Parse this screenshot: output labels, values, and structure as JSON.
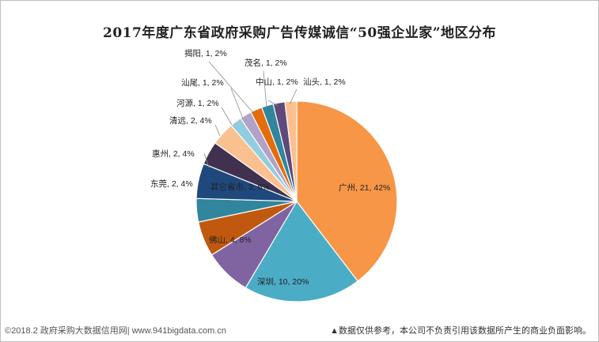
{
  "chart_data": {
    "type": "pie",
    "title": "2017年度广东省政府采购广告传媒诚信“50强企业家”地区分布",
    "slices": [
      {
        "label": "广州, 21, 42%",
        "name": "广州",
        "value": 21,
        "percent": 42,
        "color": "#F79646"
      },
      {
        "label": "深圳, 10, 20%",
        "name": "深圳",
        "value": 10,
        "percent": 20,
        "color": "#4BACC6"
      },
      {
        "label": "佛山, 4, 8%",
        "name": "佛山",
        "value": 4,
        "percent": 8,
        "color": "#8064A2"
      },
      {
        "label": "",
        "name": "",
        "value": 3,
        "percent": 6,
        "color": "#C0590F"
      },
      {
        "label": "东莞, 2, 4%",
        "name": "东莞",
        "value": 2,
        "percent": 4,
        "color": "#31859C"
      },
      {
        "label": "其它省市, 3, 6%",
        "name": "其它省市",
        "value": 3,
        "percent": 6,
        "color": "#1F497D"
      },
      {
        "label": "惠州, 2, 4%",
        "name": "惠州",
        "value": 2,
        "percent": 4,
        "color": "#403151"
      },
      {
        "label": "清远, 2, 4%",
        "name": "清远",
        "value": 2,
        "percent": 4,
        "color": "#FAC090"
      },
      {
        "label": "河源, 1, 2%",
        "name": "河源",
        "value": 1,
        "percent": 2,
        "color": "#93CDDD"
      },
      {
        "label": "汕尾, 1, 2%",
        "name": "汕尾",
        "value": 1,
        "percent": 2,
        "color": "#B3A2C7"
      },
      {
        "label": "揭阳, 1, 2%",
        "name": "揭阳",
        "value": 1,
        "percent": 2,
        "color": "#E46C0A"
      },
      {
        "label": "茂名, 1, 2%",
        "name": "茂名",
        "value": 1,
        "percent": 2,
        "color": "#31859C"
      },
      {
        "label": "中山, 1, 2%",
        "name": "中山",
        "value": 1,
        "percent": 2,
        "color": "#5F497A"
      },
      {
        "label": "汕头, 1, 2%",
        "name": "汕头",
        "value": 1,
        "percent": 2,
        "color": "#FAC090"
      }
    ]
  },
  "footer": {
    "source": "©2018.2 政府采购大数据信用网| www.941bigdata.com.cn",
    "disclaimer": "▲数据仅供参考，本公司不负责引用该数据所产生的商业负面影响。"
  }
}
